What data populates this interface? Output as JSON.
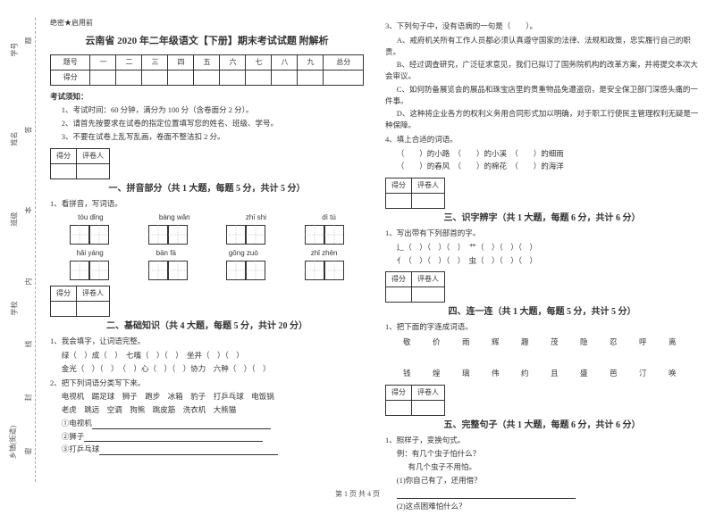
{
  "gutter": {
    "labels": [
      "学号",
      "姓名",
      "班级",
      "学校",
      "乡镇(街道)"
    ],
    "marks": [
      "题",
      "答",
      "本",
      "内",
      "线",
      "封",
      "密"
    ]
  },
  "header_note": "绝密★启用前",
  "title": "云南省 2020 年二年级语文【下册】期末考试试题 附解析",
  "score_table": {
    "row1": [
      "题号",
      "一",
      "二",
      "三",
      "四",
      "五",
      "六",
      "七",
      "八",
      "九",
      "总分"
    ],
    "row2_label": "得分"
  },
  "notice_title": "考试须知：",
  "notices": [
    "1、考试时间：60 分钟，满分为 100 分（含卷面分 2 分）。",
    "2、请首先按要求在试卷的指定位置填写您的姓名、班级、学号。",
    "3、不要在试卷上乱写乱画，卷面不整洁扣 2 分。"
  ],
  "small_score": {
    "cells": [
      "得分",
      "评卷人"
    ]
  },
  "s1": {
    "title": "一、拼音部分（共 1 大题，每题 5 分，共计 5 分）",
    "q1": "1、看拼音，写词语。",
    "pinyin_row1": [
      "tóu dǐng",
      "bàng wǎn",
      "zhī shi",
      "dì tú"
    ],
    "pinyin_row2": [
      "hǎi yáng",
      "bān fā",
      "gōng zuò",
      "zhǐ zhēn"
    ]
  },
  "s2": {
    "title": "二、基础知识（共 4 大题，每题 5 分，共计 20 分）",
    "q1": "1、我会填字，让词语完整。",
    "q1_lines": [
      "绿（　）成（　）　七嘴（　）（　）　坐井（　）（　）",
      "金光（　）（　）　（　）心（　）（　）协力　六种（　）（　）"
    ],
    "q2": "2、把下列词语分类写下来。",
    "q2_words1": "电视机　踢足球　狮子　跑步　冰箱　豹子　打乒乓球　电饭锅",
    "q2_words2": "老虎　跳远　空调　狗熊　跳皮筋　洗衣机　大熊猫",
    "q2_items": [
      "①电视机",
      "②狮子",
      "③打乒乓球"
    ]
  },
  "s3_top": {
    "q3": "3、下列句子中，没有语病的一句是（　　）。",
    "opts": [
      "A、戒府机关所有工作人员都必须认真遵守国家的法律、法规和政策，忠实履行自己的职责。",
      "B、经过调查研究，广泛征求意见，我们已拟订了国务院机构的改革方案，并将提交本次大会审议。",
      "C、如何防备展览会的展品和珠宝店里的贵重物品免遭盗窃，是安全保卫部门深感头痛的一件事。",
      "D、这种将企业各方的权利义务用合同形式加以明确，对于职工行使民主管理权利无疑是一种保障。"
    ],
    "q4": "4、填上合适的词语。",
    "q4_lines": [
      "（　　）的小路　（　　）的小溪　（　　）的细雨",
      "（　　）的春风　（　　）的棉花　（　　）的海洋"
    ]
  },
  "s3": {
    "title": "三、识字辨字（共 1 大题，每题 6 分，共计 6 分）",
    "q1": "1、写出带有下列部首的字。",
    "lines": [
      "辶（　）（　）（　）　艹（　）（　）（　）",
      "亻（　）（　）（　）　虫（　）（　）（　）"
    ]
  },
  "s4": {
    "title": "四、连一连（共 1 大题，每题 5 分，共计 5 分）",
    "q1": "1、把下面的字连成词语。",
    "row1": "敬　价　雨　辉　趣　茂　隐　忍　呼　离",
    "row2": "钱　煌　璃　伟　约　且　盛　芭　汀　唤"
  },
  "s5": {
    "title": "五、完整句子（共 1 大题，每题 6 分，共计 6 分）",
    "q1": "1、照样子，变换句式。",
    "ex_label": "例：有几个虫子怕什么？",
    "ex_ans": "有几个虫子不用怕。",
    "items": [
      "(1)你自己有了，还用借？",
      "(2)这点困难怕什么？"
    ]
  },
  "footer": "第 1 页 共 4 页"
}
